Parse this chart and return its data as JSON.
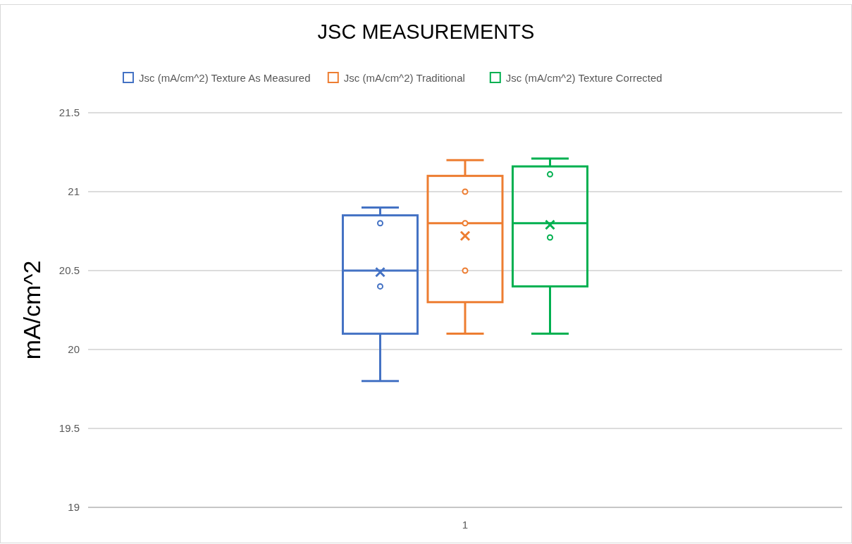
{
  "chart_data": {
    "type": "box",
    "title": "JSC MEASUREMENTS",
    "ylabel": "mA/cm^2",
    "categories": [
      "1"
    ],
    "series": [
      {
        "name": "Jsc (mA/cm^2) Texture As Measured",
        "color": "#4472c4",
        "boxes": [
          {
            "low": 19.8,
            "q1": 20.1,
            "median": 20.5,
            "q3": 20.85,
            "high": 20.9,
            "mean": 20.49,
            "outliers": [
              20.8,
              20.4
            ]
          }
        ]
      },
      {
        "name": "Jsc (mA/cm^2) Traditional",
        "color": "#ed7d31",
        "boxes": [
          {
            "low": 20.1,
            "q1": 20.3,
            "median": 20.8,
            "q3": 21.1,
            "high": 21.2,
            "mean": 20.72,
            "outliers": [
              21.0,
              20.8,
              20.5
            ]
          }
        ]
      },
      {
        "name": "Jsc (mA/cm^2) Texture Corrected",
        "color": "#00b050",
        "boxes": [
          {
            "low": 20.1,
            "q1": 20.4,
            "median": 20.8,
            "q3": 21.16,
            "high": 21.21,
            "mean": 20.79,
            "outliers": [
              21.11,
              20.71
            ]
          }
        ]
      }
    ],
    "ylim": [
      19,
      21.5
    ],
    "yticks": [
      19,
      19.5,
      20,
      20.5,
      21,
      21.5
    ],
    "grid": "y",
    "legend": "top"
  }
}
